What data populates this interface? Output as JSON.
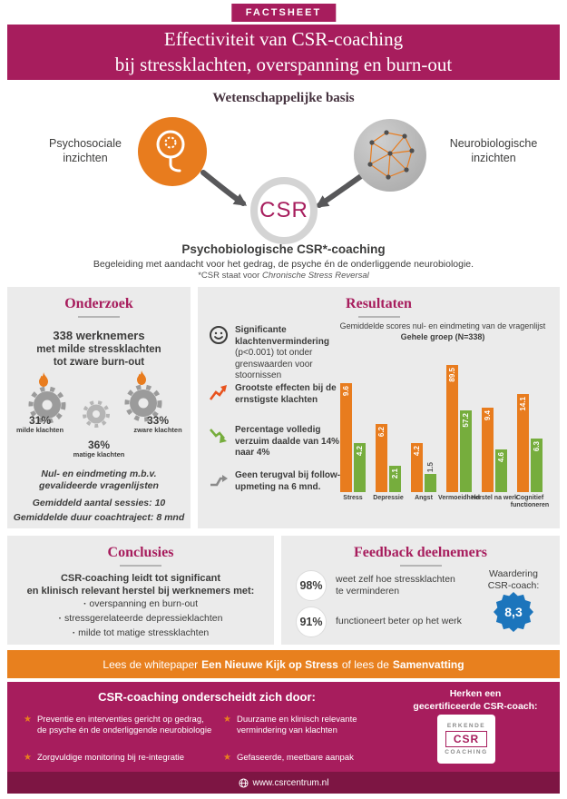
{
  "badge": "FACTSHEET",
  "header": {
    "title_line1": "Effectiviteit van CSR-coaching",
    "title_line2": "bij stressklachten, overspanning en burn-out"
  },
  "science": {
    "title": "Wetenschappelijke basis",
    "left_label_1": "Psychosociale",
    "left_label_2": "inzichten",
    "right_label_1": "Neurobiologische",
    "right_label_2": "inzichten",
    "csr": "CSR",
    "subtitle": "Psychobiologische CSR*-coaching",
    "desc": "Begeleiding met aandacht voor het gedrag, de psyche én de onderliggende neurobiologie.",
    "footnote_prefix": "*CSR staat voor",
    "footnote_italic": "Chronische Stress Reversal"
  },
  "onderzoek": {
    "title": "Onderzoek",
    "headline": "338 werknemers",
    "subline1": "met milde stressklachten",
    "subline2": "tot zware burn-out",
    "stats": [
      {
        "pct": "31%",
        "label": "milde klachten"
      },
      {
        "pct": "36%",
        "label": "matige klachten"
      },
      {
        "pct": "33%",
        "label": "zware klachten"
      }
    ],
    "note1": "Nul- en eindmeting m.b.v.",
    "note2": "gevalideerde vragenlijsten",
    "sessions_label": "Gemiddeld aantal sessies:",
    "sessions_value": "10",
    "duration_label": "Gemiddelde duur coachtraject:",
    "duration_value": "8 mnd"
  },
  "resultaten": {
    "title": "Resultaten",
    "bullets": [
      {
        "icon": "smiley-icon",
        "bold": "Significante klachtenvermindering",
        "rest": "(p<0.001) tot onder grenswaarden voor stoornissen"
      },
      {
        "icon": "arrow-up-icon",
        "bold": "Grootste effecten bij de ernstigste klachten",
        "rest": ""
      },
      {
        "icon": "arrow-down-icon",
        "bold": "Percentage volledig verzuim daalde van 14% naar 4%",
        "rest": ""
      },
      {
        "icon": "no-relapse-icon",
        "bold": "Geen terugval bij follow-upmeting na 6 mnd.",
        "rest": ""
      }
    ]
  },
  "chart_data": {
    "type": "bar",
    "title": "Gemiddelde scores nul- en eindmeting van de vragenlijst",
    "subtitle": "Gehele groep (N=338)",
    "categories": [
      "Stress",
      "Depressie",
      "Angst",
      "Vermoeidheid",
      "Herstel na werk",
      "Cognitief functioneren"
    ],
    "series": [
      {
        "name": "nulmeting",
        "color": "#e87c1e",
        "values": [
          9.6,
          6.2,
          4.2,
          89.5,
          9.4,
          14.1
        ]
      },
      {
        "name": "eindmeting",
        "color": "#76ad3d",
        "values": [
          4.2,
          2.1,
          1.5,
          57.2,
          4.6,
          6.3
        ]
      }
    ],
    "bar_height_fractions": [
      [
        0.8,
        0.36
      ],
      [
        0.5,
        0.19
      ],
      [
        0.36,
        0.13
      ],
      [
        0.93,
        0.6
      ],
      [
        0.62,
        0.31
      ],
      [
        0.72,
        0.39
      ]
    ],
    "legend_position": "none",
    "grid": false,
    "note": "bars displayed at stylized heights, not on a common numeric scale"
  },
  "conclusies": {
    "title": "Conclusies",
    "lead_line1": "CSR-coaching leidt tot significant",
    "lead_line2": "en klinisch relevant herstel bij werknemers met:",
    "bullets": [
      "overspanning en burn-out",
      "stressgerelateerde depressieklachten",
      "milde tot matige stressklachten"
    ]
  },
  "feedback": {
    "title": "Feedback deelnemers",
    "items": [
      {
        "pct": "98%",
        "text": "weet zelf hoe stressklachten te verminderen"
      },
      {
        "pct": "91%",
        "text": "functioneert beter op het werk"
      }
    ],
    "rating_label_1": "Waardering",
    "rating_label_2": "CSR-coach:",
    "rating_value": "8,3",
    "rating_color": "#1c75bc"
  },
  "banner": {
    "parts": [
      "Lees de whitepaper",
      "Een Nieuwe Kijk op Stress",
      "of lees de",
      "Samenvatting"
    ]
  },
  "footer": {
    "heading": "CSR-coaching onderscheidt zich door:",
    "right_heading_1": "Herken een",
    "right_heading_2": "gecertificeerde CSR-coach:",
    "star": "★",
    "bullets_col1": [
      "Preventie en interventies gericht op gedrag, de psyche én de onderliggende neurobiologie",
      "Zorgvuldige monitoring bij re-integratie"
    ],
    "bullets_col2": [
      "Duurzame en klinisch relevante vermindering van klachten",
      "Gefaseerde, meetbare aanpak"
    ],
    "badge": {
      "line1": "ERKENDE",
      "line2": "CSR",
      "line3": "COACHING"
    },
    "website": "www.csrcentrum.nl"
  },
  "colors": {
    "crimson": "#a71d5d",
    "crimson_dark": "#7d1543",
    "orange": "#e87c1e",
    "green": "#76ad3d",
    "blue": "#1c75bc",
    "panel_gray": "#ebebeb",
    "text_dark": "#3c3c3b"
  }
}
